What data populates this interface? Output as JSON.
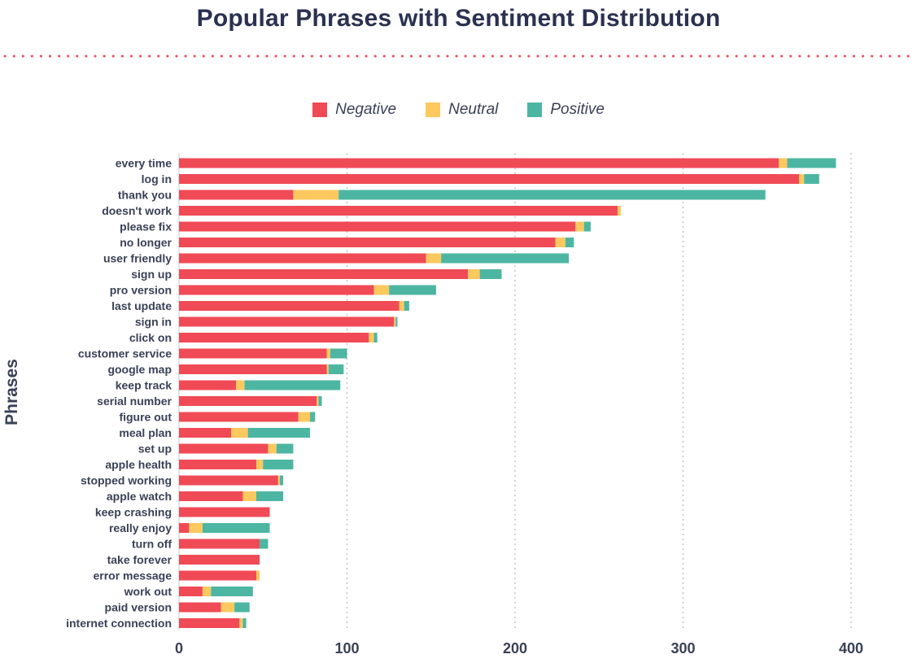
{
  "chart_data": {
    "type": "bar",
    "orientation": "horizontal",
    "stacked": true,
    "title": "Popular Phrases with Sentiment Distribution",
    "ylabel": "Phrases",
    "xlabel": "",
    "xlim": [
      0,
      400
    ],
    "x_ticks": [
      "0",
      "100",
      "200",
      "300",
      "400"
    ],
    "grid": "vertical dotted",
    "legend_position": "top-center",
    "categories": [
      "every time",
      "log in",
      "thank you",
      "doesn't work",
      "please fix",
      "no longer",
      "user friendly",
      "sign up",
      "pro version",
      "last update",
      "sign in",
      "click on",
      "customer service",
      "google map",
      "keep track",
      "serial number",
      "figure out",
      "meal plan",
      "set up",
      "apple health",
      "stopped working",
      "apple watch",
      "keep crashing",
      "really enjoy",
      "turn off",
      "take forever",
      "error message",
      "work out",
      "paid version",
      "internet connection"
    ],
    "series": [
      {
        "name": "Negative",
        "color": "#f04a56",
        "values": [
          357,
          369,
          68,
          261,
          236,
          224,
          147,
          172,
          116,
          131,
          128,
          113,
          88,
          88,
          34,
          82,
          71,
          31,
          53,
          46,
          59,
          38,
          54,
          6,
          48,
          48,
          46,
          14,
          25,
          36
        ]
      },
      {
        "name": "Neutral",
        "color": "#fdc85e",
        "values": [
          5,
          3,
          27,
          2,
          5,
          6,
          9,
          7,
          9,
          3,
          1,
          3,
          2,
          1,
          5,
          1,
          7,
          10,
          5,
          4,
          1,
          8,
          0,
          8,
          0,
          0,
          2,
          5,
          8,
          2
        ]
      },
      {
        "name": "Positive",
        "color": "#4db6a2",
        "values": [
          29,
          9,
          254,
          0,
          4,
          5,
          76,
          13,
          28,
          3,
          1,
          2,
          10,
          9,
          57,
          2,
          3,
          37,
          10,
          18,
          2,
          16,
          0,
          40,
          5,
          0,
          0,
          25,
          9,
          2
        ]
      }
    ]
  }
}
